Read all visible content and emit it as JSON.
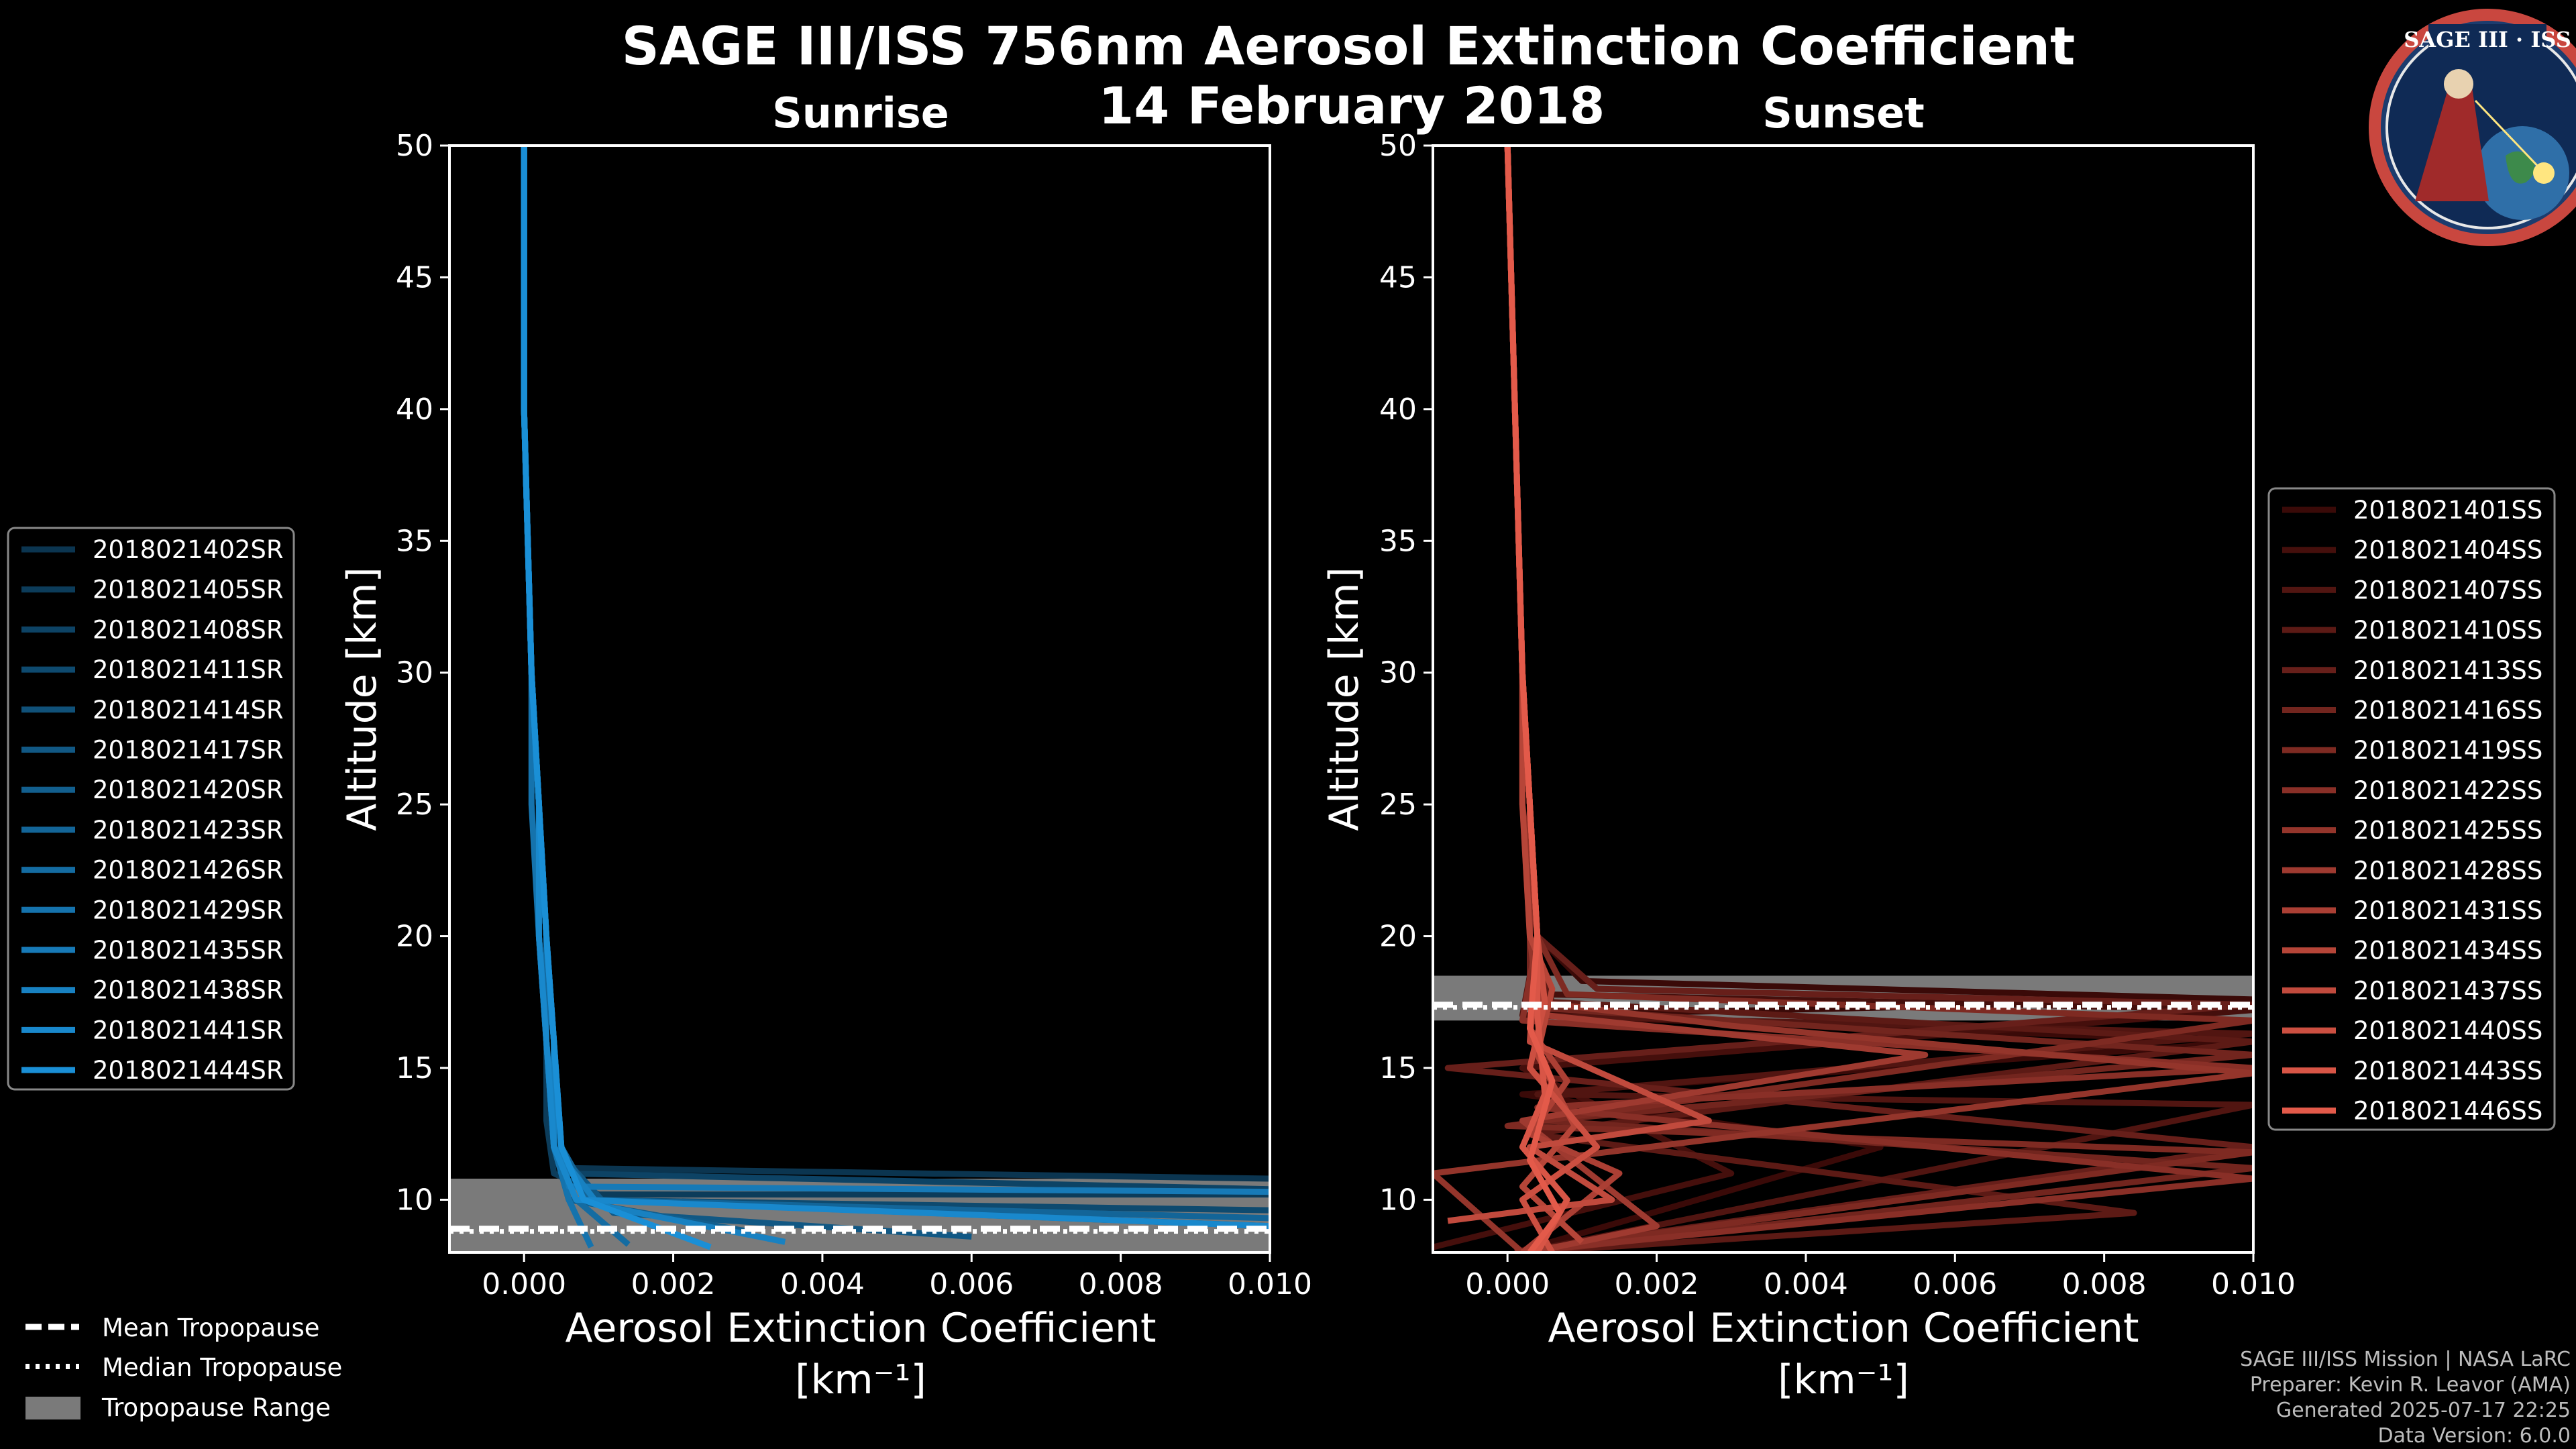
{
  "figure": {
    "title": "SAGE III/ISS 756nm Aerosol Extinction Coefficient",
    "date": "14 February 2018",
    "logo_text": "SAGE III · ISS"
  },
  "credits": [
    "SAGE III/ISS Mission | NASA LaRC",
    "Preparer: Kevin R. Leavor (AMA)",
    "Generated 2025-07-17 22:25",
    "Data Version: 6.0.0"
  ],
  "bottom_legend": {
    "mean": "Mean Tropopause",
    "median": "Median Tropopause",
    "range": "Tropopause Range"
  },
  "colors": {
    "sunrise": "#1a8fd6",
    "sunset": "#e35a4a",
    "tropopause_band": "#7a7a7a"
  },
  "chart_data": [
    {
      "type": "line",
      "panel": "sunrise",
      "title": "Sunrise",
      "xlabel": "Aerosol Extinction Coefficient",
      "xlabel_units": "[km⁻¹]",
      "ylabel": "Altitude [km]",
      "xlim": [
        -0.001,
        0.01
      ],
      "ylim": [
        8,
        50
      ],
      "xticks": [
        "0.000",
        "0.002",
        "0.004",
        "0.006",
        "0.008",
        "0.010"
      ],
      "xtick_values": [
        0,
        0.002,
        0.004,
        0.006,
        0.008,
        0.01
      ],
      "yticks": [
        10,
        15,
        20,
        25,
        30,
        35,
        40,
        45,
        50
      ],
      "tropopause": {
        "min": 8.0,
        "max": 10.8,
        "mean": 8.9,
        "median": 8.8
      },
      "series_names": [
        "2018021402SR",
        "2018021405SR",
        "2018021408SR",
        "2018021411SR",
        "2018021414SR",
        "2018021417SR",
        "2018021420SR",
        "2018021423SR",
        "2018021426SR",
        "2018021429SR",
        "2018021435SR",
        "2018021438SR",
        "2018021441SR",
        "2018021444SR"
      ],
      "series": [
        {
          "name": "2018021402SR",
          "x": [
            0.0,
            0.0,
            0.0001,
            0.0002,
            0.0003,
            0.0004,
            0.0004,
            0.0005,
            0.0006,
            0.01
          ],
          "y": [
            50,
            40,
            30,
            25,
            20,
            16,
            13,
            12,
            11.2,
            10.8
          ]
        },
        {
          "name": "2018021405SR",
          "x": [
            0.0,
            0.0,
            0.0001,
            0.0002,
            0.0002,
            0.0003,
            0.0003,
            0.0004,
            0.001,
            0.01
          ],
          "y": [
            50,
            40,
            30,
            25,
            20,
            16,
            13,
            11,
            10.2,
            10.2
          ]
        },
        {
          "name": "2018021408SR",
          "x": [
            0.0,
            0.0,
            0.0001,
            0.0002,
            0.0003,
            0.0003,
            0.0004,
            0.0005,
            0.01
          ],
          "y": [
            50,
            40,
            30,
            25,
            20,
            16,
            13,
            11,
            10.4
          ]
        },
        {
          "name": "2018021411SR",
          "x": [
            0.0,
            0.0,
            0.0001,
            0.0002,
            0.0002,
            0.0003,
            0.0004,
            0.0006,
            0.01
          ],
          "y": [
            50,
            40,
            30,
            25,
            20,
            16,
            12,
            10,
            9.6
          ]
        },
        {
          "name": "2018021414SR",
          "x": [
            0.0,
            0.0,
            0.0001,
            0.0002,
            0.0003,
            0.0004,
            0.0005,
            0.0008,
            0.01
          ],
          "y": [
            50,
            40,
            30,
            25,
            20,
            16,
            12,
            10,
            9.0
          ]
        },
        {
          "name": "2018021417SR",
          "x": [
            0.0,
            0.0,
            0.0001,
            0.0002,
            0.0003,
            0.0003,
            0.0004,
            0.0012,
            0.006
          ],
          "y": [
            50,
            40,
            30,
            25,
            20,
            16,
            12,
            9.5,
            8.6
          ]
        },
        {
          "name": "2018021420SR",
          "x": [
            0.0,
            0.0,
            0.0001,
            0.0002,
            0.0002,
            0.0003,
            0.0004,
            0.0006,
            0.003
          ],
          "y": [
            50,
            40,
            30,
            25,
            20,
            16,
            12,
            10,
            8.8
          ]
        },
        {
          "name": "2018021423SR",
          "x": [
            0.0,
            0.0,
            0.0001,
            0.0002,
            0.0003,
            0.0004,
            0.0005,
            0.0009,
            0.01
          ],
          "y": [
            50,
            40,
            30,
            25,
            20,
            16,
            12,
            10,
            9.3
          ]
        },
        {
          "name": "2018021426SR",
          "x": [
            0.0,
            0.0,
            0.0001,
            0.0002,
            0.0003,
            0.0003,
            0.0004,
            0.0007,
            0.0014
          ],
          "y": [
            50,
            40,
            30,
            25,
            20,
            16,
            12,
            10,
            8.3
          ]
        },
        {
          "name": "2018021429SR",
          "x": [
            0.0,
            0.0,
            0.0001,
            0.0001,
            0.0002,
            0.0003,
            0.0004,
            0.0006,
            0.0009
          ],
          "y": [
            50,
            40,
            30,
            25,
            20,
            16,
            12,
            10,
            8.2
          ]
        },
        {
          "name": "2018021435SR",
          "x": [
            0.0,
            0.0,
            0.0001,
            0.0002,
            0.0003,
            0.0004,
            0.0005,
            0.0006,
            0.01
          ],
          "y": [
            50,
            40,
            30,
            25,
            20,
            16,
            12,
            10.5,
            10.3
          ]
        },
        {
          "name": "2018021438SR",
          "x": [
            0.0,
            0.0,
            0.0001,
            0.0002,
            0.0003,
            0.0004,
            0.0004,
            0.001,
            0.0035
          ],
          "y": [
            50,
            40,
            30,
            25,
            20,
            16,
            12,
            9.8,
            8.4
          ]
        },
        {
          "name": "2018021441SR",
          "x": [
            0.0,
            0.0,
            0.0001,
            0.0002,
            0.0002,
            0.0003,
            0.0004,
            0.0007,
            0.01
          ],
          "y": [
            50,
            40,
            30,
            25,
            20,
            16,
            12,
            10,
            9.0
          ]
        },
        {
          "name": "2018021444SR",
          "x": [
            0.0,
            0.0,
            0.0001,
            0.0002,
            0.0003,
            0.0004,
            0.0005,
            0.0008,
            0.0025
          ],
          "y": [
            50,
            40,
            30,
            25,
            20,
            16,
            12,
            10,
            8.2
          ]
        }
      ]
    },
    {
      "type": "line",
      "panel": "sunset",
      "title": "Sunset",
      "xlabel": "Aerosol Extinction Coefficient",
      "xlabel_units": "[km⁻¹]",
      "ylabel": "Altitude [km]",
      "xlim": [
        -0.001,
        0.01
      ],
      "ylim": [
        8,
        50
      ],
      "xticks": [
        "0.000",
        "0.002",
        "0.004",
        "0.006",
        "0.008",
        "0.010"
      ],
      "xtick_values": [
        0,
        0.002,
        0.004,
        0.006,
        0.008,
        0.01
      ],
      "yticks": [
        10,
        15,
        20,
        25,
        30,
        35,
        40,
        45,
        50
      ],
      "tropopause": {
        "min": 16.8,
        "max": 18.5,
        "mean": 17.4,
        "median": 17.3
      },
      "series_names": [
        "2018021401SS",
        "2018021404SS",
        "2018021407SS",
        "2018021410SS",
        "2018021413SS",
        "2018021416SS",
        "2018021419SS",
        "2018021422SS",
        "2018021425SS",
        "2018021428SS",
        "2018021431SS",
        "2018021434SS",
        "2018021437SS",
        "2018021440SS",
        "2018021443SS",
        "2018021446SS"
      ],
      "series": [
        {
          "name": "2018021401SS",
          "x": [
            0.0,
            0.0001,
            0.0002,
            0.0003,
            0.0004,
            0.001,
            0.01,
            0.0003,
            0.01,
            0.0002,
            0.005,
            0.0001
          ],
          "y": [
            50,
            40,
            30,
            25,
            20,
            18.3,
            17.6,
            17.0,
            16.0,
            14.0,
            12.0,
            8.0
          ]
        },
        {
          "name": "2018021404SS",
          "x": [
            0.0,
            0.0001,
            0.0002,
            0.0003,
            0.0004,
            0.0004,
            0.01,
            0.0002,
            0.003,
            -0.001
          ],
          "y": [
            50,
            40,
            30,
            25,
            20,
            17.8,
            17.2,
            15.0,
            11.0,
            8.2
          ]
        },
        {
          "name": "2018021407SS",
          "x": [
            0.0,
            0.0001,
            0.0002,
            0.0003,
            0.0004,
            0.0002,
            0.01,
            0.0004,
            0.01,
            0.0002
          ],
          "y": [
            50,
            40,
            30,
            25,
            20,
            17.0,
            16.3,
            14.0,
            13.6,
            8.0
          ]
        },
        {
          "name": "2018021410SS",
          "x": [
            0.0,
            0.0001,
            0.0002,
            0.0002,
            0.0003,
            0.0006,
            0.01,
            0.0003,
            0.0084,
            0.0002
          ],
          "y": [
            50,
            40,
            30,
            25,
            20,
            17.5,
            16.0,
            12.5,
            9.5,
            8.0
          ]
        },
        {
          "name": "2018021413SS",
          "x": [
            0.0,
            0.0001,
            0.0002,
            0.0003,
            0.0004,
            0.0012,
            0.01,
            -0.0008,
            0.01,
            0.0001
          ],
          "y": [
            50,
            40,
            30,
            25,
            20,
            18.0,
            17.4,
            15.0,
            12.0,
            8.0
          ]
        },
        {
          "name": "2018021416SS",
          "x": [
            0.0,
            0.0001,
            0.0002,
            0.0003,
            0.0003,
            0.0003,
            0.01,
            0.0005,
            0.01,
            0.0003
          ],
          "y": [
            50,
            40,
            30,
            25,
            20,
            17.3,
            15.5,
            13.0,
            11.2,
            8.0
          ]
        },
        {
          "name": "2018021419SS",
          "x": [
            0.0,
            0.0001,
            0.0002,
            0.0003,
            0.0004,
            0.0008,
            0.01,
            0.0,
            0.01,
            0.0001
          ],
          "y": [
            50,
            40,
            30,
            25,
            20,
            17.8,
            16.8,
            12.8,
            11.8,
            8.0
          ]
        },
        {
          "name": "2018021422SS",
          "x": [
            0.0,
            0.0001,
            0.0002,
            0.0002,
            0.0004,
            0.0002,
            0.01,
            0.0004,
            0.01,
            0.0001
          ],
          "y": [
            50,
            40,
            30,
            25,
            20,
            16.8,
            15.0,
            13.5,
            10.8,
            8.0
          ]
        },
        {
          "name": "2018021425SS",
          "x": [
            0.0,
            0.0001,
            0.0002,
            0.0003,
            0.0003,
            0.0004,
            0.003,
            0.01,
            -0.001,
            0.0002
          ],
          "y": [
            50,
            40,
            30,
            25,
            20,
            17.5,
            16.6,
            14.8,
            11.0,
            8.0
          ]
        },
        {
          "name": "2018021428SS",
          "x": [
            0.0,
            0.0001,
            0.0002,
            0.0003,
            0.0004,
            0.0005,
            0.0056,
            0.0002,
            0.002,
            0.0003
          ],
          "y": [
            50,
            40,
            30,
            25,
            20,
            17.0,
            15.5,
            13.0,
            9.0,
            8.0
          ]
        },
        {
          "name": "2018021431SS",
          "x": [
            0.0,
            0.0001,
            0.0002,
            0.0003,
            0.0004,
            0.0003,
            0.0008,
            0.0003,
            0.0015,
            0.0002
          ],
          "y": [
            50,
            40,
            30,
            25,
            20,
            16.5,
            14.5,
            12.5,
            11.0,
            8.0
          ]
        },
        {
          "name": "2018021434SS",
          "x": [
            0.0,
            0.0001,
            0.0002,
            0.0002,
            0.0003,
            0.0006,
            0.0004,
            0.0009,
            0.0002,
            0.001
          ],
          "y": [
            50,
            40,
            30,
            25,
            20,
            18.0,
            15.5,
            12.8,
            10.5,
            8.4
          ]
        },
        {
          "name": "2018021437SS",
          "x": [
            0.0,
            0.0001,
            0.0002,
            0.0003,
            0.0004,
            0.0003,
            0.0027,
            0.0003,
            0.0014,
            -0.0008
          ],
          "y": [
            50,
            40,
            30,
            25,
            20,
            16.0,
            13.0,
            12.0,
            10.0,
            9.2
          ]
        },
        {
          "name": "2018021440SS",
          "x": [
            0.0,
            0.0001,
            0.0002,
            0.0003,
            0.0004,
            0.0005,
            0.0003,
            0.0012,
            0.0002,
            0.0006
          ],
          "y": [
            50,
            40,
            30,
            25,
            20,
            17.5,
            15.0,
            12.0,
            10.0,
            8.0
          ]
        },
        {
          "name": "2018021443SS",
          "x": [
            0.0,
            0.0001,
            0.0002,
            0.0003,
            0.0004,
            0.0004,
            0.0005,
            0.0002,
            0.0008,
            0.0004
          ],
          "y": [
            50,
            40,
            30,
            25,
            20,
            17.0,
            14.0,
            12.0,
            10.0,
            8.0
          ]
        },
        {
          "name": "2018021446SS",
          "x": [
            0.0,
            0.0001,
            0.0002,
            0.0003,
            0.0004,
            0.0003,
            0.0006,
            0.0003,
            0.0007,
            0.0003
          ],
          "y": [
            50,
            40,
            30,
            25,
            20,
            16.5,
            14.5,
            11.5,
            9.5,
            8.0
          ]
        }
      ]
    }
  ]
}
